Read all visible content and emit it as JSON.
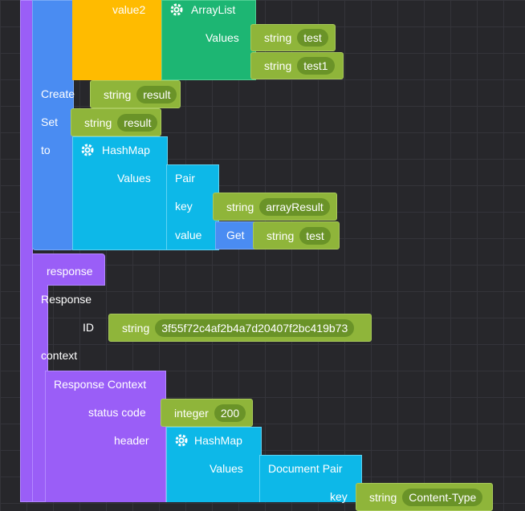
{
  "array_block": {
    "field": "value2",
    "type": "ArrayList",
    "values_label": "Values",
    "items": [
      {
        "type": "string",
        "value": "test"
      },
      {
        "type": "string",
        "value": "test1"
      }
    ]
  },
  "create": {
    "label": "Create",
    "type": "string",
    "value": "result"
  },
  "set": {
    "label": "Set",
    "type": "string",
    "value": "result",
    "to_label": "to"
  },
  "hashmap": {
    "type": "HashMap",
    "values_label": "Values",
    "pair": {
      "label": "Pair",
      "key_label": "key",
      "key": {
        "type": "string",
        "value": "arrayResult"
      },
      "value_label": "value",
      "get": "Get",
      "value": {
        "type": "string",
        "value": "test"
      }
    }
  },
  "response": {
    "label": "response",
    "block": "Response",
    "id_label": "ID",
    "id": {
      "type": "string",
      "value": "3f55f72c4af2b4a7d20407f2bc419b73"
    },
    "context_label": "context",
    "context": {
      "block": "Response Context",
      "status_label": "status code",
      "status": {
        "type": "integer",
        "value": 200
      },
      "header_label": "header",
      "header": {
        "type": "HashMap",
        "values_label": "Values",
        "pair": {
          "label": "Document Pair",
          "key_label": "key",
          "key": {
            "type": "string",
            "value": "Content-Type"
          }
        }
      }
    }
  }
}
